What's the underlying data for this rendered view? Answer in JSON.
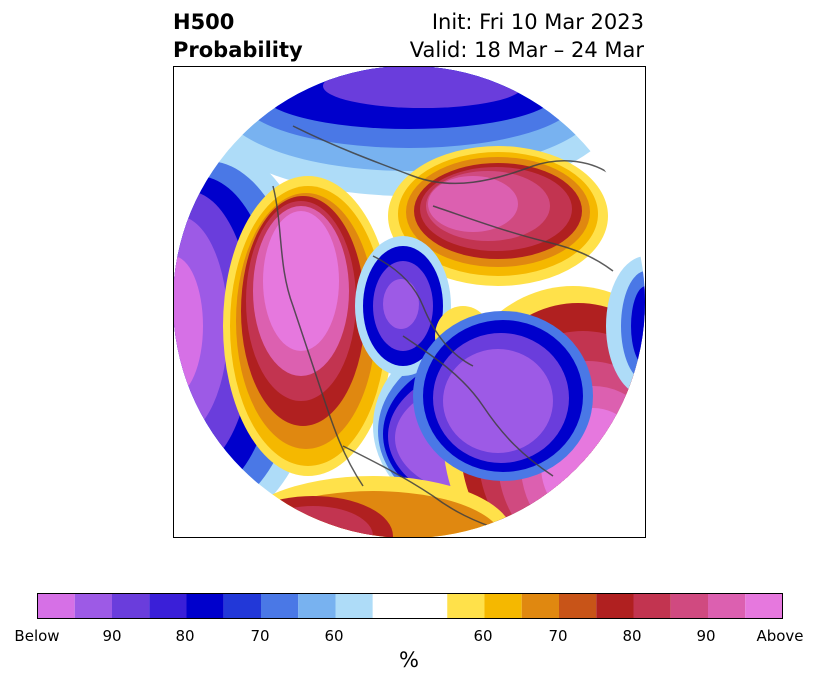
{
  "title": {
    "left_line1": "H500",
    "left_line2": "Probability",
    "right_line1": "Init: Fri 10 Mar 2023",
    "right_line2": "Valid: 18 Mar – 24 Mar"
  },
  "colorbar": {
    "colors": [
      "#d670e6",
      "#9d5ae6",
      "#6a3ddc",
      "#3a1fd8",
      "#0000cc",
      "#2238d8",
      "#4a78e6",
      "#78b2f0",
      "#aedcf8",
      "#ffffff",
      "#ffe14a",
      "#f5b800",
      "#e08810",
      "#c85418",
      "#b02020",
      "#c23450",
      "#d04a80",
      "#dc60b0",
      "#e678de"
    ],
    "tick_labels": [
      "Below",
      "90",
      "80",
      "70",
      "60",
      "60",
      "70",
      "80",
      "90",
      "Above"
    ],
    "unit": "%"
  },
  "map_legend": {
    "below_colors": [
      "#aedcf8",
      "#78b2f0",
      "#4a78e6",
      "#0000cc",
      "#6a3ddc",
      "#9d5ae6"
    ],
    "above_colors": [
      "#ffe14a",
      "#f5b800",
      "#e08810",
      "#b02020",
      "#c23450",
      "#d04a80",
      "#dc60b0"
    ]
  }
}
